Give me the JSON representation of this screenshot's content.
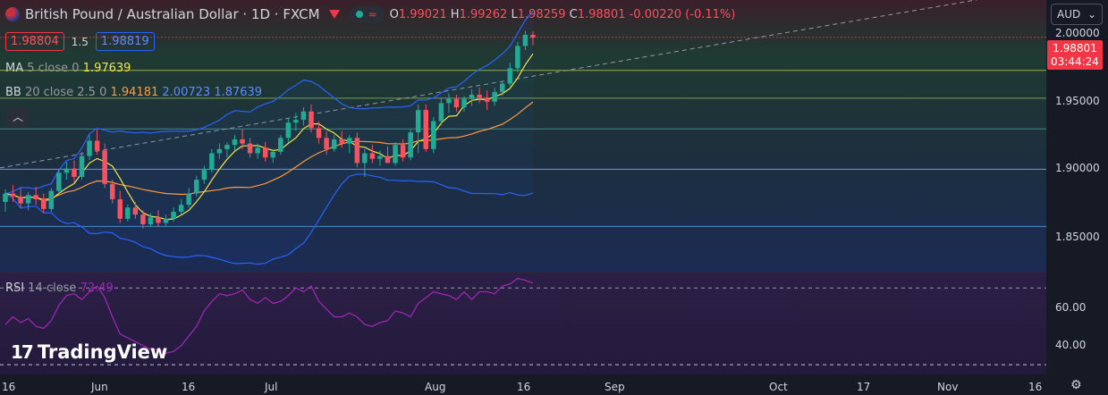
{
  "header": {
    "title": "British Pound / Australian Dollar · 1D · FXCM",
    "ohlc": [
      {
        "k": "O",
        "v": "1.99021"
      },
      {
        "k": "H",
        "v": "1.99262"
      },
      {
        "k": "L",
        "v": "1.98259"
      },
      {
        "k": "C",
        "v": "1.98801"
      }
    ],
    "change": "-0.00220 (-0.11%)"
  },
  "trade": {
    "sell": "1.98804",
    "spread": "1.5",
    "buy": "1.98819"
  },
  "indicators": {
    "ma": {
      "label": "MA",
      "params": "5 close 0",
      "value": "1.97639"
    },
    "bb": {
      "label": "BB",
      "params": "20 close 2.5 0",
      "basis": "1.94181",
      "upper": "2.00723",
      "lower": "1.87639"
    },
    "rsi": {
      "label": "RSI",
      "params": "14 close",
      "value": "72.49"
    }
  },
  "currency_select": "AUD",
  "price_tag": {
    "price": "1.98801",
    "countdown": "03:44:24"
  },
  "logo_text": "TradingView",
  "colors": {
    "up": "#22ab94",
    "down": "#f7525f",
    "ma": "#f3e545",
    "bb_basis": "#ff9a3c",
    "bb_band": "#2962ff",
    "rsi": "#9c27b0"
  },
  "chart_data": [
    {
      "type": "candlestick",
      "title": "British Pound / Australian Dollar · 1D · FXCM",
      "ylim": [
        1.82,
        2.015
      ],
      "y_ticks": [
        "2.00000",
        "1.95000",
        "1.90000",
        "1.85000"
      ],
      "x_ticks": [
        "16",
        "Jun",
        "16",
        "Jul",
        "Aug",
        "16",
        "Sep",
        "Oct",
        "17",
        "Nov",
        "16"
      ],
      "candles": [
        {
          "o": 1.87,
          "h": 1.879,
          "l": 1.863,
          "c": 1.876
        },
        {
          "o": 1.876,
          "h": 1.882,
          "l": 1.87,
          "c": 1.874
        },
        {
          "o": 1.874,
          "h": 1.88,
          "l": 1.866,
          "c": 1.869
        },
        {
          "o": 1.869,
          "h": 1.877,
          "l": 1.864,
          "c": 1.875
        },
        {
          "o": 1.875,
          "h": 1.881,
          "l": 1.868,
          "c": 1.872
        },
        {
          "o": 1.872,
          "h": 1.876,
          "l": 1.862,
          "c": 1.865
        },
        {
          "o": 1.865,
          "h": 1.88,
          "l": 1.863,
          "c": 1.878
        },
        {
          "o": 1.878,
          "h": 1.894,
          "l": 1.876,
          "c": 1.891
        },
        {
          "o": 1.891,
          "h": 1.899,
          "l": 1.886,
          "c": 1.894
        },
        {
          "o": 1.894,
          "h": 1.9,
          "l": 1.884,
          "c": 1.888
        },
        {
          "o": 1.888,
          "h": 1.906,
          "l": 1.886,
          "c": 1.903
        },
        {
          "o": 1.903,
          "h": 1.918,
          "l": 1.9,
          "c": 1.914
        },
        {
          "o": 1.914,
          "h": 1.922,
          "l": 1.904,
          "c": 1.907
        },
        {
          "o": 1.907,
          "h": 1.912,
          "l": 1.88,
          "c": 1.883
        },
        {
          "o": 1.883,
          "h": 1.886,
          "l": 1.869,
          "c": 1.872
        },
        {
          "o": 1.872,
          "h": 1.878,
          "l": 1.855,
          "c": 1.858
        },
        {
          "o": 1.858,
          "h": 1.868,
          "l": 1.856,
          "c": 1.866
        },
        {
          "o": 1.866,
          "h": 1.87,
          "l": 1.858,
          "c": 1.861
        },
        {
          "o": 1.861,
          "h": 1.864,
          "l": 1.851,
          "c": 1.854
        },
        {
          "o": 1.854,
          "h": 1.862,
          "l": 1.852,
          "c": 1.859
        },
        {
          "o": 1.859,
          "h": 1.864,
          "l": 1.852,
          "c": 1.855
        },
        {
          "o": 1.855,
          "h": 1.861,
          "l": 1.853,
          "c": 1.858
        },
        {
          "o": 1.858,
          "h": 1.866,
          "l": 1.856,
          "c": 1.863
        },
        {
          "o": 1.863,
          "h": 1.872,
          "l": 1.861,
          "c": 1.868
        },
        {
          "o": 1.868,
          "h": 1.88,
          "l": 1.866,
          "c": 1.876
        },
        {
          "o": 1.876,
          "h": 1.889,
          "l": 1.874,
          "c": 1.886
        },
        {
          "o": 1.886,
          "h": 1.896,
          "l": 1.883,
          "c": 1.893
        },
        {
          "o": 1.893,
          "h": 1.908,
          "l": 1.891,
          "c": 1.905
        },
        {
          "o": 1.905,
          "h": 1.912,
          "l": 1.901,
          "c": 1.908
        },
        {
          "o": 1.908,
          "h": 1.913,
          "l": 1.902,
          "c": 1.911
        },
        {
          "o": 1.911,
          "h": 1.918,
          "l": 1.907,
          "c": 1.915
        },
        {
          "o": 1.915,
          "h": 1.922,
          "l": 1.908,
          "c": 1.912
        },
        {
          "o": 1.912,
          "h": 1.916,
          "l": 1.902,
          "c": 1.905
        },
        {
          "o": 1.905,
          "h": 1.912,
          "l": 1.901,
          "c": 1.909
        },
        {
          "o": 1.909,
          "h": 1.913,
          "l": 1.899,
          "c": 1.902
        },
        {
          "o": 1.902,
          "h": 1.908,
          "l": 1.898,
          "c": 1.906
        },
        {
          "o": 1.906,
          "h": 1.918,
          "l": 1.904,
          "c": 1.916
        },
        {
          "o": 1.916,
          "h": 1.93,
          "l": 1.913,
          "c": 1.927
        },
        {
          "o": 1.927,
          "h": 1.934,
          "l": 1.921,
          "c": 1.929
        },
        {
          "o": 1.929,
          "h": 1.938,
          "l": 1.925,
          "c": 1.935
        },
        {
          "o": 1.935,
          "h": 1.94,
          "l": 1.92,
          "c": 1.923
        },
        {
          "o": 1.923,
          "h": 1.928,
          "l": 1.912,
          "c": 1.916
        },
        {
          "o": 1.916,
          "h": 1.921,
          "l": 1.904,
          "c": 1.908
        },
        {
          "o": 1.908,
          "h": 1.918,
          "l": 1.906,
          "c": 1.915
        },
        {
          "o": 1.915,
          "h": 1.921,
          "l": 1.909,
          "c": 1.912
        },
        {
          "o": 1.912,
          "h": 1.918,
          "l": 1.905,
          "c": 1.916
        },
        {
          "o": 1.916,
          "h": 1.92,
          "l": 1.895,
          "c": 1.898
        },
        {
          "o": 1.898,
          "h": 1.908,
          "l": 1.888,
          "c": 1.905
        },
        {
          "o": 1.905,
          "h": 1.911,
          "l": 1.898,
          "c": 1.901
        },
        {
          "o": 1.901,
          "h": 1.907,
          "l": 1.896,
          "c": 1.903
        },
        {
          "o": 1.903,
          "h": 1.91,
          "l": 1.899,
          "c": 1.898
        },
        {
          "o": 1.898,
          "h": 1.913,
          "l": 1.896,
          "c": 1.911
        },
        {
          "o": 1.911,
          "h": 1.915,
          "l": 1.899,
          "c": 1.902
        },
        {
          "o": 1.902,
          "h": 1.922,
          "l": 1.9,
          "c": 1.92
        },
        {
          "o": 1.92,
          "h": 1.94,
          "l": 1.905,
          "c": 1.936
        },
        {
          "o": 1.936,
          "h": 1.94,
          "l": 1.906,
          "c": 1.908
        },
        {
          "o": 1.908,
          "h": 1.931,
          "l": 1.905,
          "c": 1.928
        },
        {
          "o": 1.928,
          "h": 1.945,
          "l": 1.925,
          "c": 1.941
        },
        {
          "o": 1.941,
          "h": 1.948,
          "l": 1.934,
          "c": 1.944
        },
        {
          "o": 1.944,
          "h": 1.947,
          "l": 1.935,
          "c": 1.938
        },
        {
          "o": 1.938,
          "h": 1.946,
          "l": 1.935,
          "c": 1.944
        },
        {
          "o": 1.944,
          "h": 1.951,
          "l": 1.939,
          "c": 1.947
        },
        {
          "o": 1.947,
          "h": 1.952,
          "l": 1.941,
          "c": 1.945
        },
        {
          "o": 1.945,
          "h": 1.95,
          "l": 1.936,
          "c": 1.942
        },
        {
          "o": 1.942,
          "h": 1.952,
          "l": 1.939,
          "c": 1.949
        },
        {
          "o": 1.949,
          "h": 1.957,
          "l": 1.946,
          "c": 1.955
        },
        {
          "o": 1.955,
          "h": 1.97,
          "l": 1.953,
          "c": 1.966
        },
        {
          "o": 1.966,
          "h": 1.985,
          "l": 1.963,
          "c": 1.982
        },
        {
          "o": 1.982,
          "h": 1.993,
          "l": 1.979,
          "c": 1.99
        },
        {
          "o": 1.99,
          "h": 1.9926,
          "l": 1.9826,
          "c": 1.988
        }
      ],
      "ma5_last": 1.97639,
      "bb": {
        "basis_last": 1.94181,
        "upper_last": 2.00723,
        "lower_last": 1.87639
      },
      "horizontal_levels": [
        1.9881,
        1.9645,
        1.9445,
        1.9225,
        1.8935,
        1.8525
      ],
      "rsi": {
        "ylim": [
          25,
          78
        ],
        "y_ticks": [
          "60.00",
          "40.00"
        ],
        "levels": [
          70,
          30
        ],
        "values": [
          51,
          55,
          52,
          54,
          50,
          49,
          53,
          61,
          66,
          67,
          64,
          68,
          71,
          65,
          55,
          46,
          44,
          42,
          40,
          38,
          38,
          36,
          37,
          40,
          45,
          50,
          58,
          63,
          67,
          66,
          67,
          69,
          64,
          62,
          65,
          62,
          63,
          66,
          70,
          68,
          71,
          63,
          59,
          55,
          55,
          57,
          55,
          51,
          50,
          52,
          53,
          58,
          57,
          55,
          62,
          65,
          68,
          67,
          66,
          64,
          68,
          64,
          68,
          68,
          67,
          71,
          72,
          75,
          74,
          72.49
        ]
      }
    }
  ]
}
